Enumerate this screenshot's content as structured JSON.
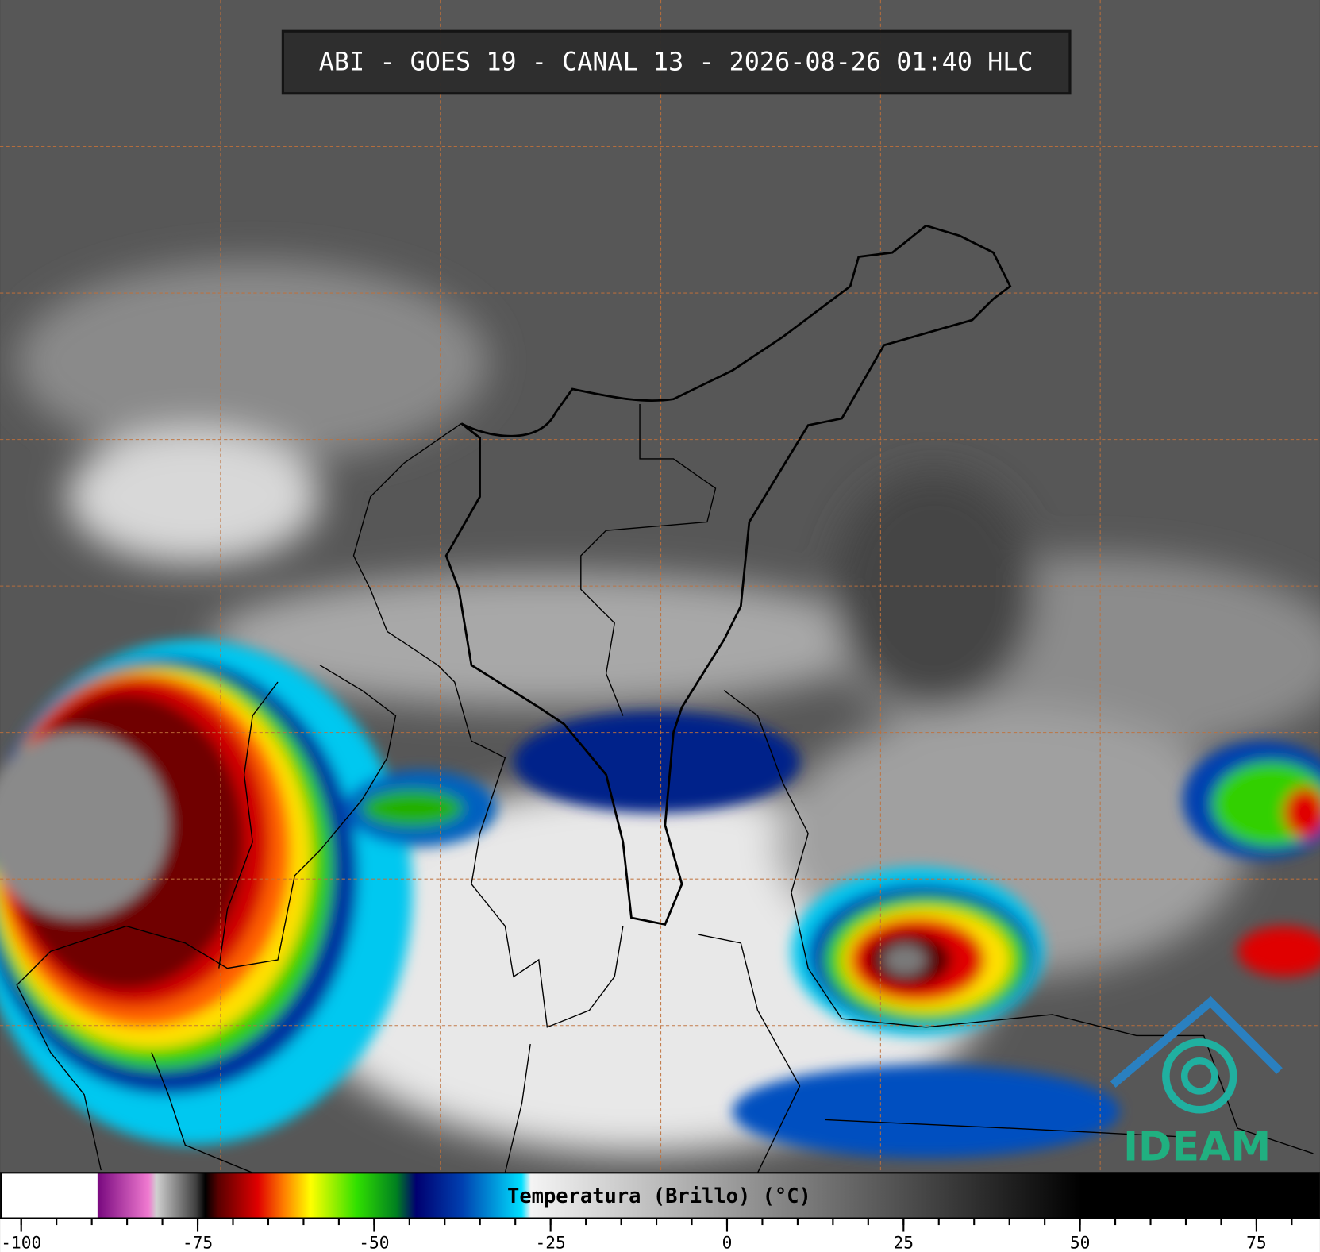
{
  "header": {
    "title": "ABI - GOES 19 - CANAL 13 - 2026-08-26 01:40 HLC"
  },
  "colorbar": {
    "label": "Temperatura (Brillo) (°C)",
    "lim": [
      -103,
      84
    ],
    "ticks": [
      -100,
      -75,
      -50,
      -25,
      0,
      25,
      50,
      75
    ]
  },
  "logo": {
    "text": "IDEAM"
  }
}
